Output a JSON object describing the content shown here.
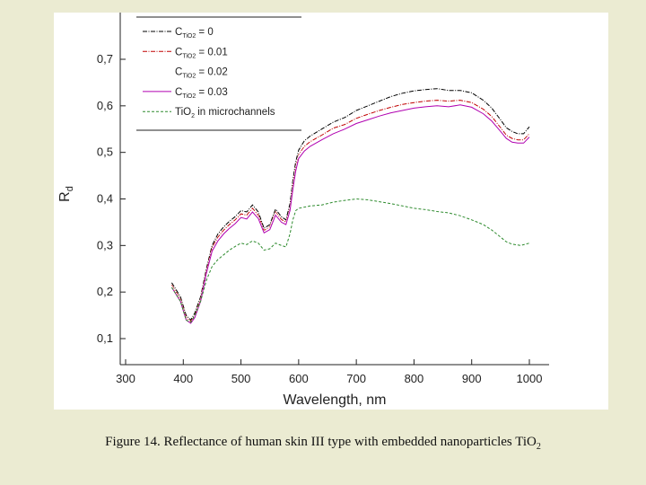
{
  "caption": {
    "text": "Figure 14. Reflectance of human skin III type with embedded  nanoparticles Ti",
    "chem_main": "O",
    "chem_sub": "2"
  },
  "chart_data": {
    "type": "line",
    "xlabel": "Wavelength, nm",
    "ylabel_main": "R",
    "ylabel_sub": "d",
    "xlim": [
      300,
      1000
    ],
    "ylim": [
      0.05,
      0.82
    ],
    "x_ticks": [
      300,
      400,
      500,
      600,
      700,
      800,
      900,
      1000
    ],
    "x_tick_labels": [
      "300",
      "400",
      "500",
      "600",
      "700",
      "800",
      "900",
      "1000"
    ],
    "y_ticks": [
      0.1,
      0.2,
      0.3,
      0.4,
      0.5,
      0.6,
      0.7
    ],
    "y_tick_labels": [
      "0,1",
      "0,2",
      "0,3",
      "0,4",
      "0,5",
      "0,6",
      "0,7"
    ],
    "legend_position": "top-left",
    "series": [
      {
        "name": "C = 0",
        "legend_prefix": "C",
        "legend_sub": "TiO2",
        "legend_suffix": " = 0",
        "color": "#000000",
        "style": "dash-dot",
        "points": [
          [
            380,
            0.22
          ],
          [
            395,
            0.19
          ],
          [
            405,
            0.15
          ],
          [
            413,
            0.14
          ],
          [
            420,
            0.155
          ],
          [
            430,
            0.19
          ],
          [
            440,
            0.25
          ],
          [
            450,
            0.3
          ],
          [
            460,
            0.325
          ],
          [
            470,
            0.34
          ],
          [
            480,
            0.352
          ],
          [
            490,
            0.362
          ],
          [
            500,
            0.375
          ],
          [
            510,
            0.372
          ],
          [
            520,
            0.387
          ],
          [
            530,
            0.372
          ],
          [
            540,
            0.337
          ],
          [
            550,
            0.345
          ],
          [
            560,
            0.378
          ],
          [
            570,
            0.362
          ],
          [
            578,
            0.355
          ],
          [
            585,
            0.39
          ],
          [
            590,
            0.44
          ],
          [
            595,
            0.48
          ],
          [
            600,
            0.505
          ],
          [
            610,
            0.525
          ],
          [
            620,
            0.535
          ],
          [
            640,
            0.55
          ],
          [
            660,
            0.565
          ],
          [
            680,
            0.575
          ],
          [
            700,
            0.59
          ],
          [
            720,
            0.6
          ],
          [
            740,
            0.61
          ],
          [
            760,
            0.62
          ],
          [
            780,
            0.627
          ],
          [
            800,
            0.632
          ],
          [
            820,
            0.635
          ],
          [
            840,
            0.637
          ],
          [
            860,
            0.633
          ],
          [
            880,
            0.633
          ],
          [
            900,
            0.628
          ],
          [
            920,
            0.612
          ],
          [
            935,
            0.595
          ],
          [
            950,
            0.57
          ],
          [
            960,
            0.553
          ],
          [
            970,
            0.545
          ],
          [
            980,
            0.54
          ],
          [
            990,
            0.54
          ],
          [
            1000,
            0.555
          ]
        ]
      },
      {
        "name": "C = 0.01",
        "legend_prefix": "C",
        "legend_sub": "TiO2",
        "legend_suffix": " = 0.01",
        "color": "#c00000",
        "style": "dash-dot",
        "points": [
          [
            380,
            0.215
          ],
          [
            395,
            0.185
          ],
          [
            405,
            0.145
          ],
          [
            413,
            0.137
          ],
          [
            420,
            0.15
          ],
          [
            430,
            0.185
          ],
          [
            440,
            0.245
          ],
          [
            450,
            0.295
          ],
          [
            460,
            0.318
          ],
          [
            470,
            0.333
          ],
          [
            480,
            0.345
          ],
          [
            490,
            0.355
          ],
          [
            500,
            0.368
          ],
          [
            510,
            0.365
          ],
          [
            520,
            0.38
          ],
          [
            530,
            0.365
          ],
          [
            540,
            0.332
          ],
          [
            550,
            0.34
          ],
          [
            560,
            0.372
          ],
          [
            570,
            0.356
          ],
          [
            578,
            0.35
          ],
          [
            585,
            0.38
          ],
          [
            590,
            0.43
          ],
          [
            595,
            0.47
          ],
          [
            600,
            0.495
          ],
          [
            610,
            0.513
          ],
          [
            620,
            0.523
          ],
          [
            640,
            0.537
          ],
          [
            660,
            0.552
          ],
          [
            680,
            0.56
          ],
          [
            700,
            0.573
          ],
          [
            720,
            0.582
          ],
          [
            740,
            0.59
          ],
          [
            760,
            0.597
          ],
          [
            780,
            0.603
          ],
          [
            800,
            0.607
          ],
          [
            820,
            0.61
          ],
          [
            840,
            0.612
          ],
          [
            860,
            0.61
          ],
          [
            880,
            0.612
          ],
          [
            900,
            0.607
          ],
          [
            920,
            0.593
          ],
          [
            935,
            0.577
          ],
          [
            950,
            0.553
          ],
          [
            960,
            0.537
          ],
          [
            970,
            0.53
          ],
          [
            980,
            0.527
          ],
          [
            990,
            0.527
          ],
          [
            1000,
            0.54
          ]
        ]
      },
      {
        "name": "C = 0.02",
        "legend_prefix": "C",
        "legend_sub": "TiO2",
        "legend_suffix": " = 0.02",
        "color": "#ffffff",
        "style": "dash-dot",
        "points": [
          [
            380,
            0.213
          ],
          [
            395,
            0.183
          ],
          [
            405,
            0.143
          ],
          [
            413,
            0.135
          ],
          [
            420,
            0.148
          ],
          [
            430,
            0.183
          ],
          [
            440,
            0.243
          ],
          [
            450,
            0.292
          ],
          [
            460,
            0.315
          ],
          [
            470,
            0.33
          ],
          [
            480,
            0.342
          ],
          [
            490,
            0.352
          ],
          [
            500,
            0.365
          ],
          [
            510,
            0.362
          ],
          [
            520,
            0.377
          ],
          [
            530,
            0.362
          ],
          [
            540,
            0.33
          ],
          [
            550,
            0.338
          ],
          [
            560,
            0.37
          ],
          [
            570,
            0.353
          ],
          [
            578,
            0.348
          ],
          [
            585,
            0.378
          ],
          [
            590,
            0.428
          ],
          [
            595,
            0.468
          ],
          [
            600,
            0.493
          ],
          [
            610,
            0.51
          ],
          [
            620,
            0.52
          ],
          [
            640,
            0.534
          ],
          [
            660,
            0.548
          ],
          [
            680,
            0.557
          ],
          [
            700,
            0.57
          ],
          [
            720,
            0.578
          ],
          [
            740,
            0.586
          ],
          [
            760,
            0.593
          ],
          [
            780,
            0.599
          ],
          [
            800,
            0.603
          ],
          [
            820,
            0.606
          ],
          [
            840,
            0.608
          ],
          [
            860,
            0.606
          ],
          [
            880,
            0.608
          ],
          [
            900,
            0.603
          ],
          [
            920,
            0.589
          ],
          [
            935,
            0.573
          ],
          [
            950,
            0.55
          ],
          [
            960,
            0.534
          ],
          [
            970,
            0.527
          ],
          [
            980,
            0.524
          ],
          [
            990,
            0.524
          ],
          [
            1000,
            0.537
          ]
        ]
      },
      {
        "name": "C = 0.03",
        "legend_prefix": "C",
        "legend_sub": "TiO2",
        "legend_suffix": " = 0.03",
        "color": "#b000b0",
        "style": "solid",
        "points": [
          [
            380,
            0.21
          ],
          [
            395,
            0.18
          ],
          [
            405,
            0.14
          ],
          [
            413,
            0.133
          ],
          [
            420,
            0.145
          ],
          [
            430,
            0.18
          ],
          [
            440,
            0.24
          ],
          [
            450,
            0.288
          ],
          [
            460,
            0.31
          ],
          [
            470,
            0.325
          ],
          [
            480,
            0.337
          ],
          [
            490,
            0.347
          ],
          [
            500,
            0.36
          ],
          [
            510,
            0.357
          ],
          [
            520,
            0.372
          ],
          [
            530,
            0.358
          ],
          [
            540,
            0.327
          ],
          [
            550,
            0.334
          ],
          [
            560,
            0.365
          ],
          [
            570,
            0.35
          ],
          [
            578,
            0.345
          ],
          [
            585,
            0.375
          ],
          [
            590,
            0.42
          ],
          [
            595,
            0.46
          ],
          [
            600,
            0.487
          ],
          [
            610,
            0.503
          ],
          [
            620,
            0.513
          ],
          [
            640,
            0.527
          ],
          [
            660,
            0.54
          ],
          [
            680,
            0.55
          ],
          [
            700,
            0.562
          ],
          [
            720,
            0.57
          ],
          [
            740,
            0.578
          ],
          [
            760,
            0.585
          ],
          [
            780,
            0.59
          ],
          [
            800,
            0.595
          ],
          [
            820,
            0.598
          ],
          [
            840,
            0.6
          ],
          [
            860,
            0.598
          ],
          [
            880,
            0.602
          ],
          [
            900,
            0.597
          ],
          [
            920,
            0.583
          ],
          [
            935,
            0.567
          ],
          [
            950,
            0.545
          ],
          [
            960,
            0.53
          ],
          [
            970,
            0.522
          ],
          [
            980,
            0.52
          ],
          [
            990,
            0.52
          ],
          [
            1000,
            0.533
          ]
        ]
      },
      {
        "name": "TiO2 in microchannels",
        "legend_text_a": "TiO",
        "legend_sub": "2",
        "legend_text_b": " in microchannels",
        "color": "#2e8b2e",
        "style": "dashed",
        "points": [
          [
            380,
            0.21
          ],
          [
            395,
            0.18
          ],
          [
            405,
            0.14
          ],
          [
            413,
            0.135
          ],
          [
            420,
            0.15
          ],
          [
            430,
            0.18
          ],
          [
            440,
            0.225
          ],
          [
            450,
            0.255
          ],
          [
            460,
            0.27
          ],
          [
            470,
            0.28
          ],
          [
            480,
            0.29
          ],
          [
            490,
            0.298
          ],
          [
            500,
            0.305
          ],
          [
            510,
            0.302
          ],
          [
            520,
            0.31
          ],
          [
            530,
            0.305
          ],
          [
            540,
            0.29
          ],
          [
            550,
            0.293
          ],
          [
            560,
            0.305
          ],
          [
            570,
            0.3
          ],
          [
            578,
            0.297
          ],
          [
            585,
            0.325
          ],
          [
            590,
            0.355
          ],
          [
            595,
            0.375
          ],
          [
            600,
            0.38
          ],
          [
            620,
            0.385
          ],
          [
            640,
            0.387
          ],
          [
            660,
            0.393
          ],
          [
            680,
            0.397
          ],
          [
            700,
            0.4
          ],
          [
            720,
            0.398
          ],
          [
            740,
            0.394
          ],
          [
            760,
            0.39
          ],
          [
            780,
            0.385
          ],
          [
            800,
            0.38
          ],
          [
            820,
            0.377
          ],
          [
            840,
            0.373
          ],
          [
            860,
            0.37
          ],
          [
            880,
            0.364
          ],
          [
            900,
            0.355
          ],
          [
            920,
            0.345
          ],
          [
            935,
            0.333
          ],
          [
            950,
            0.318
          ],
          [
            960,
            0.308
          ],
          [
            970,
            0.303
          ],
          [
            985,
            0.3
          ],
          [
            1000,
            0.305
          ]
        ]
      }
    ]
  }
}
